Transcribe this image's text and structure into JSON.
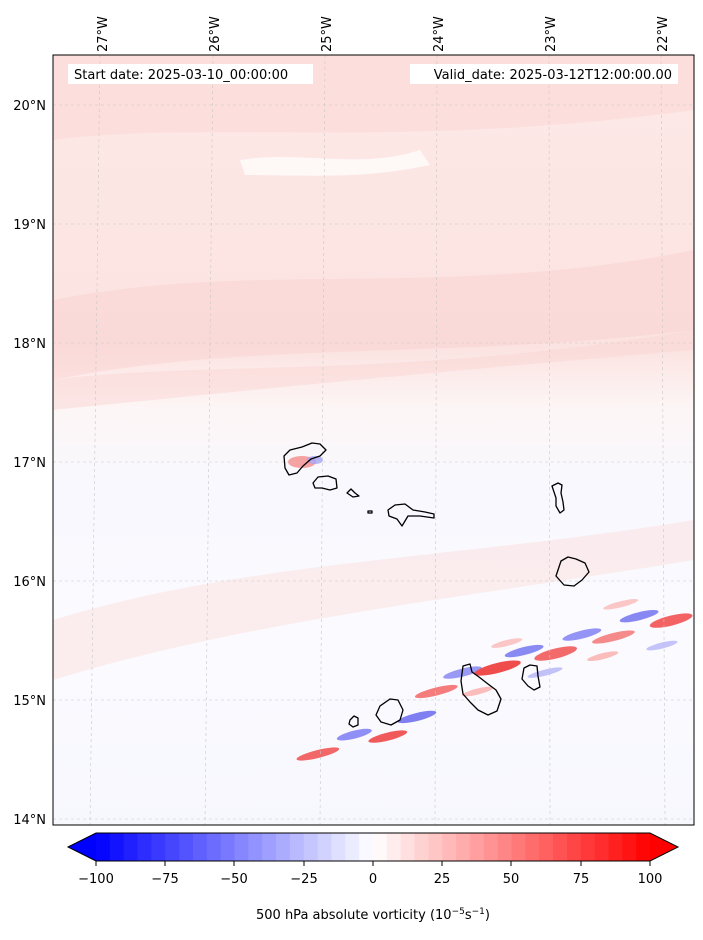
{
  "map": {
    "start_label": "Start date: 2025-03-10_00:00:00",
    "valid_label": "Valid_date: 2025-03-12T12:00:00.00",
    "lon_ticks": [
      "27°W",
      "26°W",
      "25°W",
      "24°W",
      "23°W",
      "22°W"
    ],
    "lat_ticks": [
      "20°N",
      "19°N",
      "18°N",
      "17°N",
      "16°N",
      "15°N",
      "14°N"
    ],
    "colorbar": {
      "ticks": [
        "−100",
        "−75",
        "−50",
        "−25",
        "0",
        "25",
        "50",
        "75",
        "100"
      ],
      "label_main": "500 hPa absolute vorticity (10",
      "label_sup1": "−5",
      "label_mid": "s",
      "label_sup2": "−1",
      "label_end": ")",
      "colors": {
        "min": "#0000ff",
        "mid": "#ffffff",
        "max": "#ff0000"
      }
    }
  }
}
